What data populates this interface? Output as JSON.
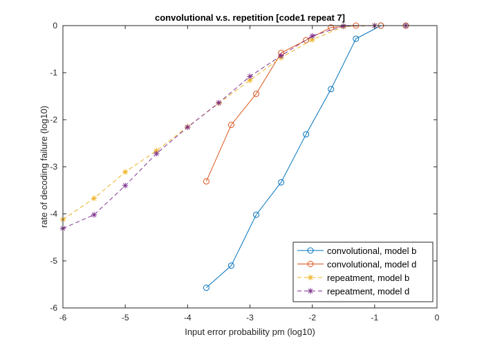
{
  "chart_data": {
    "type": "line",
    "title": "convolutional v.s. repetition [code1 repeat 7]",
    "xlabel": "Input error probability pm (log10)",
    "ylabel": "rate of decoding failure (log10)",
    "xlim": [
      -6,
      0
    ],
    "ylim": [
      -6,
      0
    ],
    "xticks": [
      -6,
      -5,
      -4,
      -3,
      -2,
      -1,
      0
    ],
    "yticks": [
      -6,
      -5,
      -4,
      -3,
      -2,
      -1,
      0
    ],
    "xtick_labels": [
      "-6",
      "-5",
      "-4",
      "-3",
      "-2",
      "-1",
      "0"
    ],
    "ytick_labels": [
      "-6",
      "-5",
      "-4",
      "-3",
      "-2",
      "-1",
      "0"
    ],
    "grid": false,
    "legend_position": "bottom-right",
    "series": [
      {
        "name": "convolutional, model b",
        "color": "#0072BD",
        "line": "solid",
        "marker": "circle",
        "x": [
          -3.7,
          -3.3,
          -2.9,
          -2.5,
          -2.1,
          -1.7,
          -1.3,
          -0.9,
          -0.5
        ],
        "y": [
          -5.57,
          -5.1,
          -4.02,
          -3.33,
          -2.31,
          -1.35,
          -0.28,
          0,
          0
        ]
      },
      {
        "name": "convolutional, model d",
        "color": "#D95319",
        "line": "solid",
        "marker": "circle",
        "x": [
          -3.7,
          -3.3,
          -2.9,
          -2.5,
          -2.1,
          -1.7,
          -1.3,
          -0.9,
          -0.5
        ],
        "y": [
          -3.31,
          -2.11,
          -1.45,
          -0.58,
          -0.31,
          -0.04,
          0,
          0,
          0
        ]
      },
      {
        "name": "repeatment, model b",
        "color": "#EDB120",
        "line": "dashed",
        "marker": "star",
        "x": [
          -6,
          -5.5,
          -5,
          -4.5,
          -4,
          -3.5,
          -3,
          -2.5,
          -2,
          -1.5,
          -1,
          -0.5
        ],
        "y": [
          -4.12,
          -3.67,
          -3.11,
          -2.66,
          -2.15,
          -1.65,
          -1.16,
          -0.68,
          -0.3,
          -0.02,
          0,
          0
        ]
      },
      {
        "name": "repeatment, model d",
        "color": "#7E2F8E",
        "line": "dashed",
        "marker": "star",
        "x": [
          -6,
          -5.5,
          -5,
          -4.5,
          -4,
          -3.5,
          -3,
          -2.5,
          -2,
          -1.5,
          -1,
          -0.5
        ],
        "y": [
          -4.31,
          -4.02,
          -3.4,
          -2.72,
          -2.16,
          -1.64,
          -1.08,
          -0.64,
          -0.22,
          -0.01,
          0,
          0
        ]
      }
    ]
  }
}
